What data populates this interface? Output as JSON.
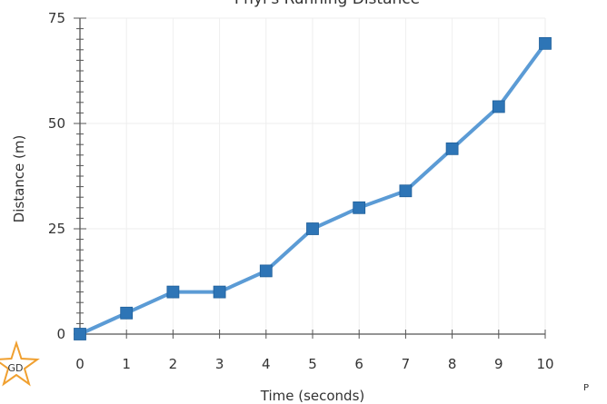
{
  "chart_data": {
    "type": "line",
    "title": "Phyl's Running Distance",
    "xlabel": "Time (seconds)",
    "ylabel": "Distance (m)",
    "x": [
      0,
      1,
      2,
      3,
      4,
      5,
      6,
      7,
      8,
      9,
      10
    ],
    "series": [
      {
        "values": [
          0,
          5,
          10,
          10,
          15,
          25,
          30,
          34,
          44,
          54,
          69
        ]
      }
    ],
    "xlim": [
      0,
      10
    ],
    "ylim": [
      0,
      75
    ],
    "xticks": [
      0,
      1,
      2,
      3,
      4,
      5,
      6,
      7,
      8,
      9,
      10
    ],
    "yticks": [
      0,
      25,
      50,
      75
    ],
    "grid": true,
    "legend": "none",
    "colors": {
      "line": "#5b9bd5",
      "marker": "#2e75b6",
      "axis": "#555555",
      "grid": "#eeeeee"
    }
  },
  "watermark": {
    "badge_text": "GD",
    "corner_text": "P"
  }
}
